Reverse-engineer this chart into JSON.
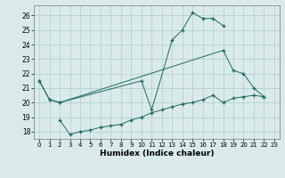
{
  "xlabel": "Humidex (Indice chaleur)",
  "background_color": "#daeaea",
  "line_color": "#1a6b5a",
  "grid_color": "#b0cccc",
  "xlim": [
    -0.5,
    23.5
  ],
  "ylim": [
    17.5,
    26.7
  ],
  "yticks": [
    18,
    19,
    20,
    21,
    22,
    23,
    24,
    25,
    26
  ],
  "xticks": [
    0,
    1,
    2,
    3,
    4,
    5,
    6,
    7,
    8,
    9,
    10,
    11,
    12,
    13,
    14,
    15,
    16,
    17,
    18,
    19,
    20,
    21,
    22,
    23
  ],
  "series": [
    {
      "x": [
        0,
        1,
        2,
        10,
        11,
        13,
        14,
        15,
        16,
        17,
        18
      ],
      "y": [
        21.5,
        20.2,
        20.0,
        21.5,
        19.5,
        24.3,
        25.0,
        26.2,
        25.8,
        25.8,
        25.3
      ]
    },
    {
      "x": [
        0,
        1,
        2,
        18,
        19,
        20,
        21,
        22
      ],
      "y": [
        21.5,
        20.2,
        20.0,
        23.6,
        22.2,
        22.0,
        21.0,
        20.4
      ]
    },
    {
      "x": [
        2,
        3,
        4,
        5,
        6,
        7,
        8,
        9,
        10,
        11,
        12,
        13,
        14,
        15,
        16,
        17,
        18,
        19,
        20,
        21,
        22
      ],
      "y": [
        18.8,
        17.8,
        18.0,
        18.1,
        18.3,
        18.4,
        18.5,
        18.8,
        19.0,
        19.3,
        19.5,
        19.7,
        19.9,
        20.0,
        20.2,
        20.5,
        20.0,
        20.3,
        20.4,
        20.5,
        20.4
      ]
    }
  ]
}
